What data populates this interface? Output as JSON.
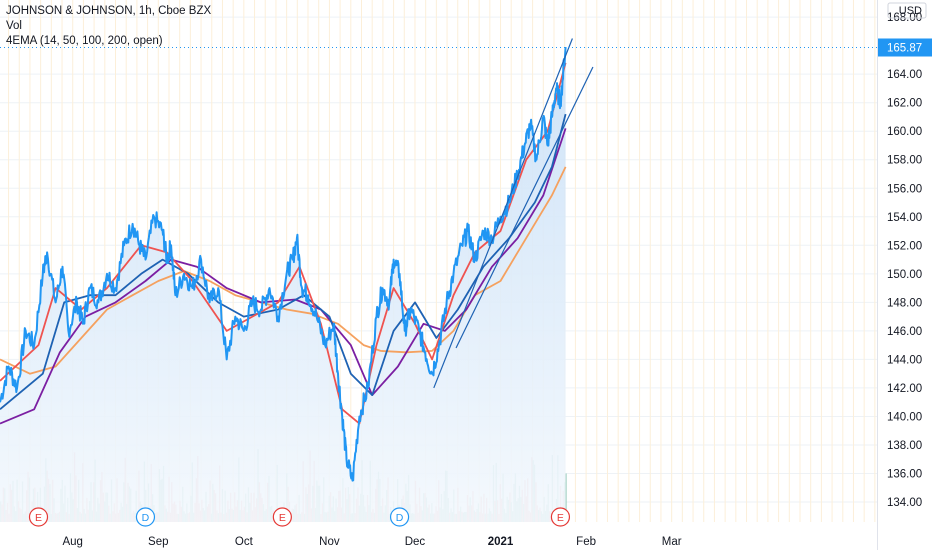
{
  "chart_data": {
    "type": "line",
    "title": "JOHNSON & JOHNSON, 1h, Cboe BZX",
    "volume_label": "Vol",
    "indicator_label": "4EMA (14, 50, 100, 200, open)",
    "currency": "USD",
    "last_price": "165.87",
    "ylim": [
      132.6,
      169.2
    ],
    "y_ticks": [
      "168.00",
      "164.00",
      "162.00",
      "160.00",
      "158.00",
      "156.00",
      "154.00",
      "152.00",
      "150.00",
      "148.00",
      "146.00",
      "144.00",
      "142.00",
      "140.00",
      "138.00",
      "136.00",
      "134.00"
    ],
    "x_ticks": [
      {
        "label": "Aug",
        "x": 0.5
      },
      {
        "label": "Sep",
        "x": 1.5
      },
      {
        "label": "Oct",
        "x": 2.5
      },
      {
        "label": "Nov",
        "x": 3.5
      },
      {
        "label": "Dec",
        "x": 4.5
      },
      {
        "label": "2021",
        "x": 5.5
      },
      {
        "label": "Feb",
        "x": 6.5
      },
      {
        "label": "Mar",
        "x": 7.5
      }
    ],
    "xlim": [
      -0.35,
      9.9
    ],
    "grid": true,
    "events": [
      {
        "type": "E",
        "x": 0.1
      },
      {
        "type": "D",
        "x": 1.35
      },
      {
        "type": "E",
        "x": 2.95
      },
      {
        "type": "D",
        "x": 4.32
      },
      {
        "type": "E",
        "x": 6.2
      }
    ],
    "price": [
      [
        -0.35,
        141
      ],
      [
        -0.25,
        143.5
      ],
      [
        -0.15,
        142
      ],
      [
        -0.05,
        146
      ],
      [
        0.05,
        145
      ],
      [
        0.15,
        150
      ],
      [
        0.2,
        151.5
      ],
      [
        0.3,
        148
      ],
      [
        0.38,
        150.5
      ],
      [
        0.45,
        146
      ],
      [
        0.55,
        148
      ],
      [
        0.62,
        146.5
      ],
      [
        0.7,
        149
      ],
      [
        0.8,
        148
      ],
      [
        0.9,
        150
      ],
      [
        1.0,
        149
      ],
      [
        1.1,
        152
      ],
      [
        1.2,
        153.5
      ],
      [
        1.28,
        152
      ],
      [
        1.35,
        151
      ],
      [
        1.45,
        154
      ],
      [
        1.55,
        153
      ],
      [
        1.6,
        151
      ],
      [
        1.65,
        152
      ],
      [
        1.7,
        148.5
      ],
      [
        1.8,
        150
      ],
      [
        1.9,
        149
      ],
      [
        2.0,
        151
      ],
      [
        2.1,
        148
      ],
      [
        2.2,
        149
      ],
      [
        2.3,
        144
      ],
      [
        2.4,
        147
      ],
      [
        2.5,
        146
      ],
      [
        2.6,
        148
      ],
      [
        2.7,
        147.5
      ],
      [
        2.8,
        149
      ],
      [
        2.9,
        147
      ],
      [
        3.0,
        150
      ],
      [
        3.07,
        151
      ],
      [
        3.12,
        152.5
      ],
      [
        3.18,
        149
      ],
      [
        3.25,
        148.5
      ],
      [
        3.35,
        147
      ],
      [
        3.45,
        145
      ],
      [
        3.55,
        146.5
      ],
      [
        3.6,
        143
      ],
      [
        3.65,
        140
      ],
      [
        3.7,
        137
      ],
      [
        3.77,
        135.5
      ],
      [
        3.85,
        140
      ],
      [
        3.95,
        142
      ],
      [
        4.05,
        147
      ],
      [
        4.12,
        149
      ],
      [
        4.2,
        148
      ],
      [
        4.25,
        151
      ],
      [
        4.32,
        150
      ],
      [
        4.38,
        146
      ],
      [
        4.45,
        147.5
      ],
      [
        4.55,
        146
      ],
      [
        4.62,
        144.5
      ],
      [
        4.7,
        143
      ],
      [
        4.78,
        145
      ],
      [
        4.87,
        148
      ],
      [
        4.95,
        150
      ],
      [
        5.05,
        152
      ],
      [
        5.12,
        153
      ],
      [
        5.2,
        151
      ],
      [
        5.3,
        153
      ],
      [
        5.4,
        152.5
      ],
      [
        5.5,
        154
      ],
      [
        5.6,
        155
      ],
      [
        5.7,
        157
      ],
      [
        5.78,
        159
      ],
      [
        5.85,
        160.5
      ],
      [
        5.92,
        158
      ],
      [
        6.0,
        161
      ],
      [
        6.05,
        159
      ],
      [
        6.1,
        161
      ],
      [
        6.15,
        163
      ],
      [
        6.2,
        162
      ],
      [
        6.26,
        165.9
      ]
    ],
    "ema14": [
      [
        -0.35,
        142.5
      ],
      [
        0.1,
        145
      ],
      [
        0.3,
        149
      ],
      [
        0.6,
        147.5
      ],
      [
        0.9,
        149
      ],
      [
        1.3,
        152
      ],
      [
        1.6,
        151.5
      ],
      [
        1.9,
        149.5
      ],
      [
        2.3,
        146
      ],
      [
        2.6,
        147
      ],
      [
        2.9,
        148
      ],
      [
        3.15,
        150.5
      ],
      [
        3.4,
        146.5
      ],
      [
        3.65,
        140.5
      ],
      [
        3.85,
        139.5
      ],
      [
        4.05,
        145
      ],
      [
        4.25,
        149
      ],
      [
        4.5,
        146.5
      ],
      [
        4.7,
        144
      ],
      [
        4.95,
        148.5
      ],
      [
        5.2,
        151.5
      ],
      [
        5.5,
        153
      ],
      [
        5.8,
        158
      ],
      [
        6.05,
        160
      ],
      [
        6.26,
        164.8
      ]
    ],
    "ema50": [
      [
        -0.35,
        140.5
      ],
      [
        0.15,
        143
      ],
      [
        0.4,
        148
      ],
      [
        0.7,
        148.5
      ],
      [
        1.0,
        148.5
      ],
      [
        1.3,
        150
      ],
      [
        1.55,
        151
      ],
      [
        1.85,
        150
      ],
      [
        2.2,
        148
      ],
      [
        2.5,
        147
      ],
      [
        2.9,
        147.5
      ],
      [
        3.2,
        148.5
      ],
      [
        3.5,
        147
      ],
      [
        3.75,
        143
      ],
      [
        4.0,
        141.5
      ],
      [
        4.25,
        146
      ],
      [
        4.5,
        148
      ],
      [
        4.75,
        145.5
      ],
      [
        5.0,
        147.5
      ],
      [
        5.3,
        150.5
      ],
      [
        5.6,
        152.5
      ],
      [
        5.9,
        155
      ],
      [
        6.1,
        157.5
      ],
      [
        6.26,
        161.2
      ]
    ],
    "ema100": [
      [
        -0.35,
        139.5
      ],
      [
        0.05,
        140.5
      ],
      [
        0.35,
        144.5
      ],
      [
        0.65,
        147
      ],
      [
        1.0,
        148
      ],
      [
        1.35,
        149.5
      ],
      [
        1.65,
        151
      ],
      [
        1.95,
        150.5
      ],
      [
        2.3,
        149
      ],
      [
        2.7,
        148
      ],
      [
        3.1,
        148.2
      ],
      [
        3.4,
        147.5
      ],
      [
        3.75,
        145
      ],
      [
        4.0,
        141.5
      ],
      [
        4.3,
        143.5
      ],
      [
        4.6,
        146.5
      ],
      [
        4.85,
        146
      ],
      [
        5.1,
        147.5
      ],
      [
        5.4,
        150.5
      ],
      [
        5.7,
        152.5
      ],
      [
        6.0,
        155.5
      ],
      [
        6.26,
        160.2
      ]
    ],
    "ema200": [
      [
        -0.35,
        144
      ],
      [
        0.0,
        143
      ],
      [
        0.3,
        143.5
      ],
      [
        0.6,
        145.5
      ],
      [
        0.9,
        147.5
      ],
      [
        1.2,
        148.5
      ],
      [
        1.5,
        149.5
      ],
      [
        1.8,
        150.2
      ],
      [
        2.1,
        149.5
      ],
      [
        2.4,
        148.5
      ],
      [
        2.7,
        148
      ],
      [
        3.0,
        147.5
      ],
      [
        3.3,
        147.2
      ],
      [
        3.6,
        146.5
      ],
      [
        3.9,
        145
      ],
      [
        4.1,
        144.6
      ],
      [
        4.4,
        144.5
      ],
      [
        4.7,
        144.6
      ],
      [
        4.95,
        146
      ],
      [
        5.2,
        148.5
      ],
      [
        5.5,
        149.5
      ],
      [
        5.7,
        151.5
      ],
      [
        5.95,
        154
      ],
      [
        6.1,
        155.5
      ],
      [
        6.26,
        157.5
      ]
    ],
    "channel": [
      {
        "from": [
          4.72,
          142
        ],
        "to": [
          6.34,
          166.5
        ]
      },
      {
        "from": [
          4.98,
          144.8
        ],
        "to": [
          6.58,
          164.5
        ]
      }
    ],
    "volume_seed": 7,
    "colors": {
      "price": "#2196f3",
      "ema14": "#ef5350",
      "ema50": "#1e62b3",
      "ema100": "#7b1fa2",
      "ema200": "#f5a15f",
      "area_top": "#c9e0f7",
      "area_bottom": "#f3f8fd",
      "vol_up": "#93c9b8",
      "vol_down": "#f0a3a3",
      "grid": "#eef2f6",
      "vgrid": "#fcefd9",
      "channel": "#1e62b3",
      "pricetag": "#2196f3",
      "last_line": "#2196f3",
      "event_e": "#e53935",
      "event_d": "#2196f3",
      "text": "#131722"
    }
  }
}
